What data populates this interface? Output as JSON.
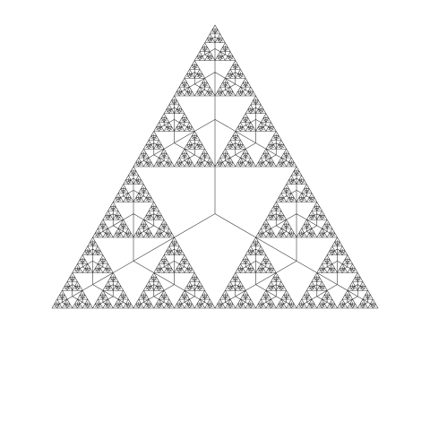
{
  "figure": {
    "kind": "sierpinski-triangle-fractal",
    "shape": "equilateral-triangle",
    "background_color": "#ffffff",
    "line_color": "#3a3a3a",
    "recursion_depth": 6,
    "has_text": false
  }
}
